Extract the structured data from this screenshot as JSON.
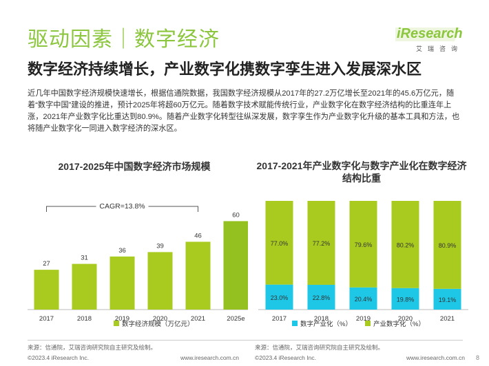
{
  "header": {
    "title": "驱动因素｜数字经济",
    "subtitle": "数字经济持续增长，产业数字化携数字孪生进入发展深水区",
    "logo_main": "iResearch",
    "logo_sub": "艾瑞咨询",
    "logo_accent": "#8cc63f"
  },
  "description": "近几年中国数字经济规模快速增长，根据信通院数据，我国数字经济规模从2017年的27.2万亿增长至2021年的45.6万亿元，随着“数字中国”建设的推进，预计2025年将超60万亿元。随着数字技术赋能传统行业，产业数字化在数字经济结构的比重连年上涨，2021年产业数字化比重达到80.9%。随着产业数字化转型往纵深发展，数字孪生作为产业数字化升级的基本工具和方法，也将随产业数字化一同进入数字经济的深水区。",
  "chart_data": [
    {
      "type": "bar",
      "title": "2017-2025年中国数字经济市场规模",
      "categories": [
        "2017",
        "2018",
        "2019",
        "2020",
        "2021",
        "2025e"
      ],
      "series": [
        {
          "name": "数字经济规模（万亿元）",
          "values": [
            27,
            31,
            36,
            39,
            46,
            60
          ],
          "color": "#a9cb1f",
          "highlight_color": "#94c11f"
        }
      ],
      "annotation": "CAGR=13.8%",
      "ylim": [
        0,
        70
      ],
      "grid": false,
      "legend": "bottom"
    },
    {
      "type": "bar",
      "stacked": true,
      "percent": true,
      "title": "2017-2021年产业数字化与数字产业化在数字经济结构比重",
      "categories": [
        "2017",
        "2018",
        "2019",
        "2020",
        "2021"
      ],
      "series": [
        {
          "name": "数字产业化（%）",
          "values": [
            23.0,
            22.8,
            20.4,
            19.8,
            19.1
          ],
          "color": "#1ec7e6"
        },
        {
          "name": "产业数字化（%）",
          "values": [
            77.0,
            77.2,
            79.6,
            80.2,
            80.9
          ],
          "color": "#a9cb1f"
        }
      ],
      "ylim": [
        0,
        100
      ],
      "grid": false,
      "legend": "bottom"
    }
  ],
  "footer": {
    "source_left": "来源：信通院，艾瑞咨询研究院自主研究及绘制。",
    "source_right": "来源：信通院，艾瑞咨询研究院自主研究及绘制。",
    "copyright_left": "©2023.4 iResearch Inc.",
    "url_left": "www.iresearch.com.cn",
    "copyright_right": "©2023.4 iResearch Inc.",
    "url_right": "www.iresearch.com.cn",
    "page_number": "8"
  }
}
